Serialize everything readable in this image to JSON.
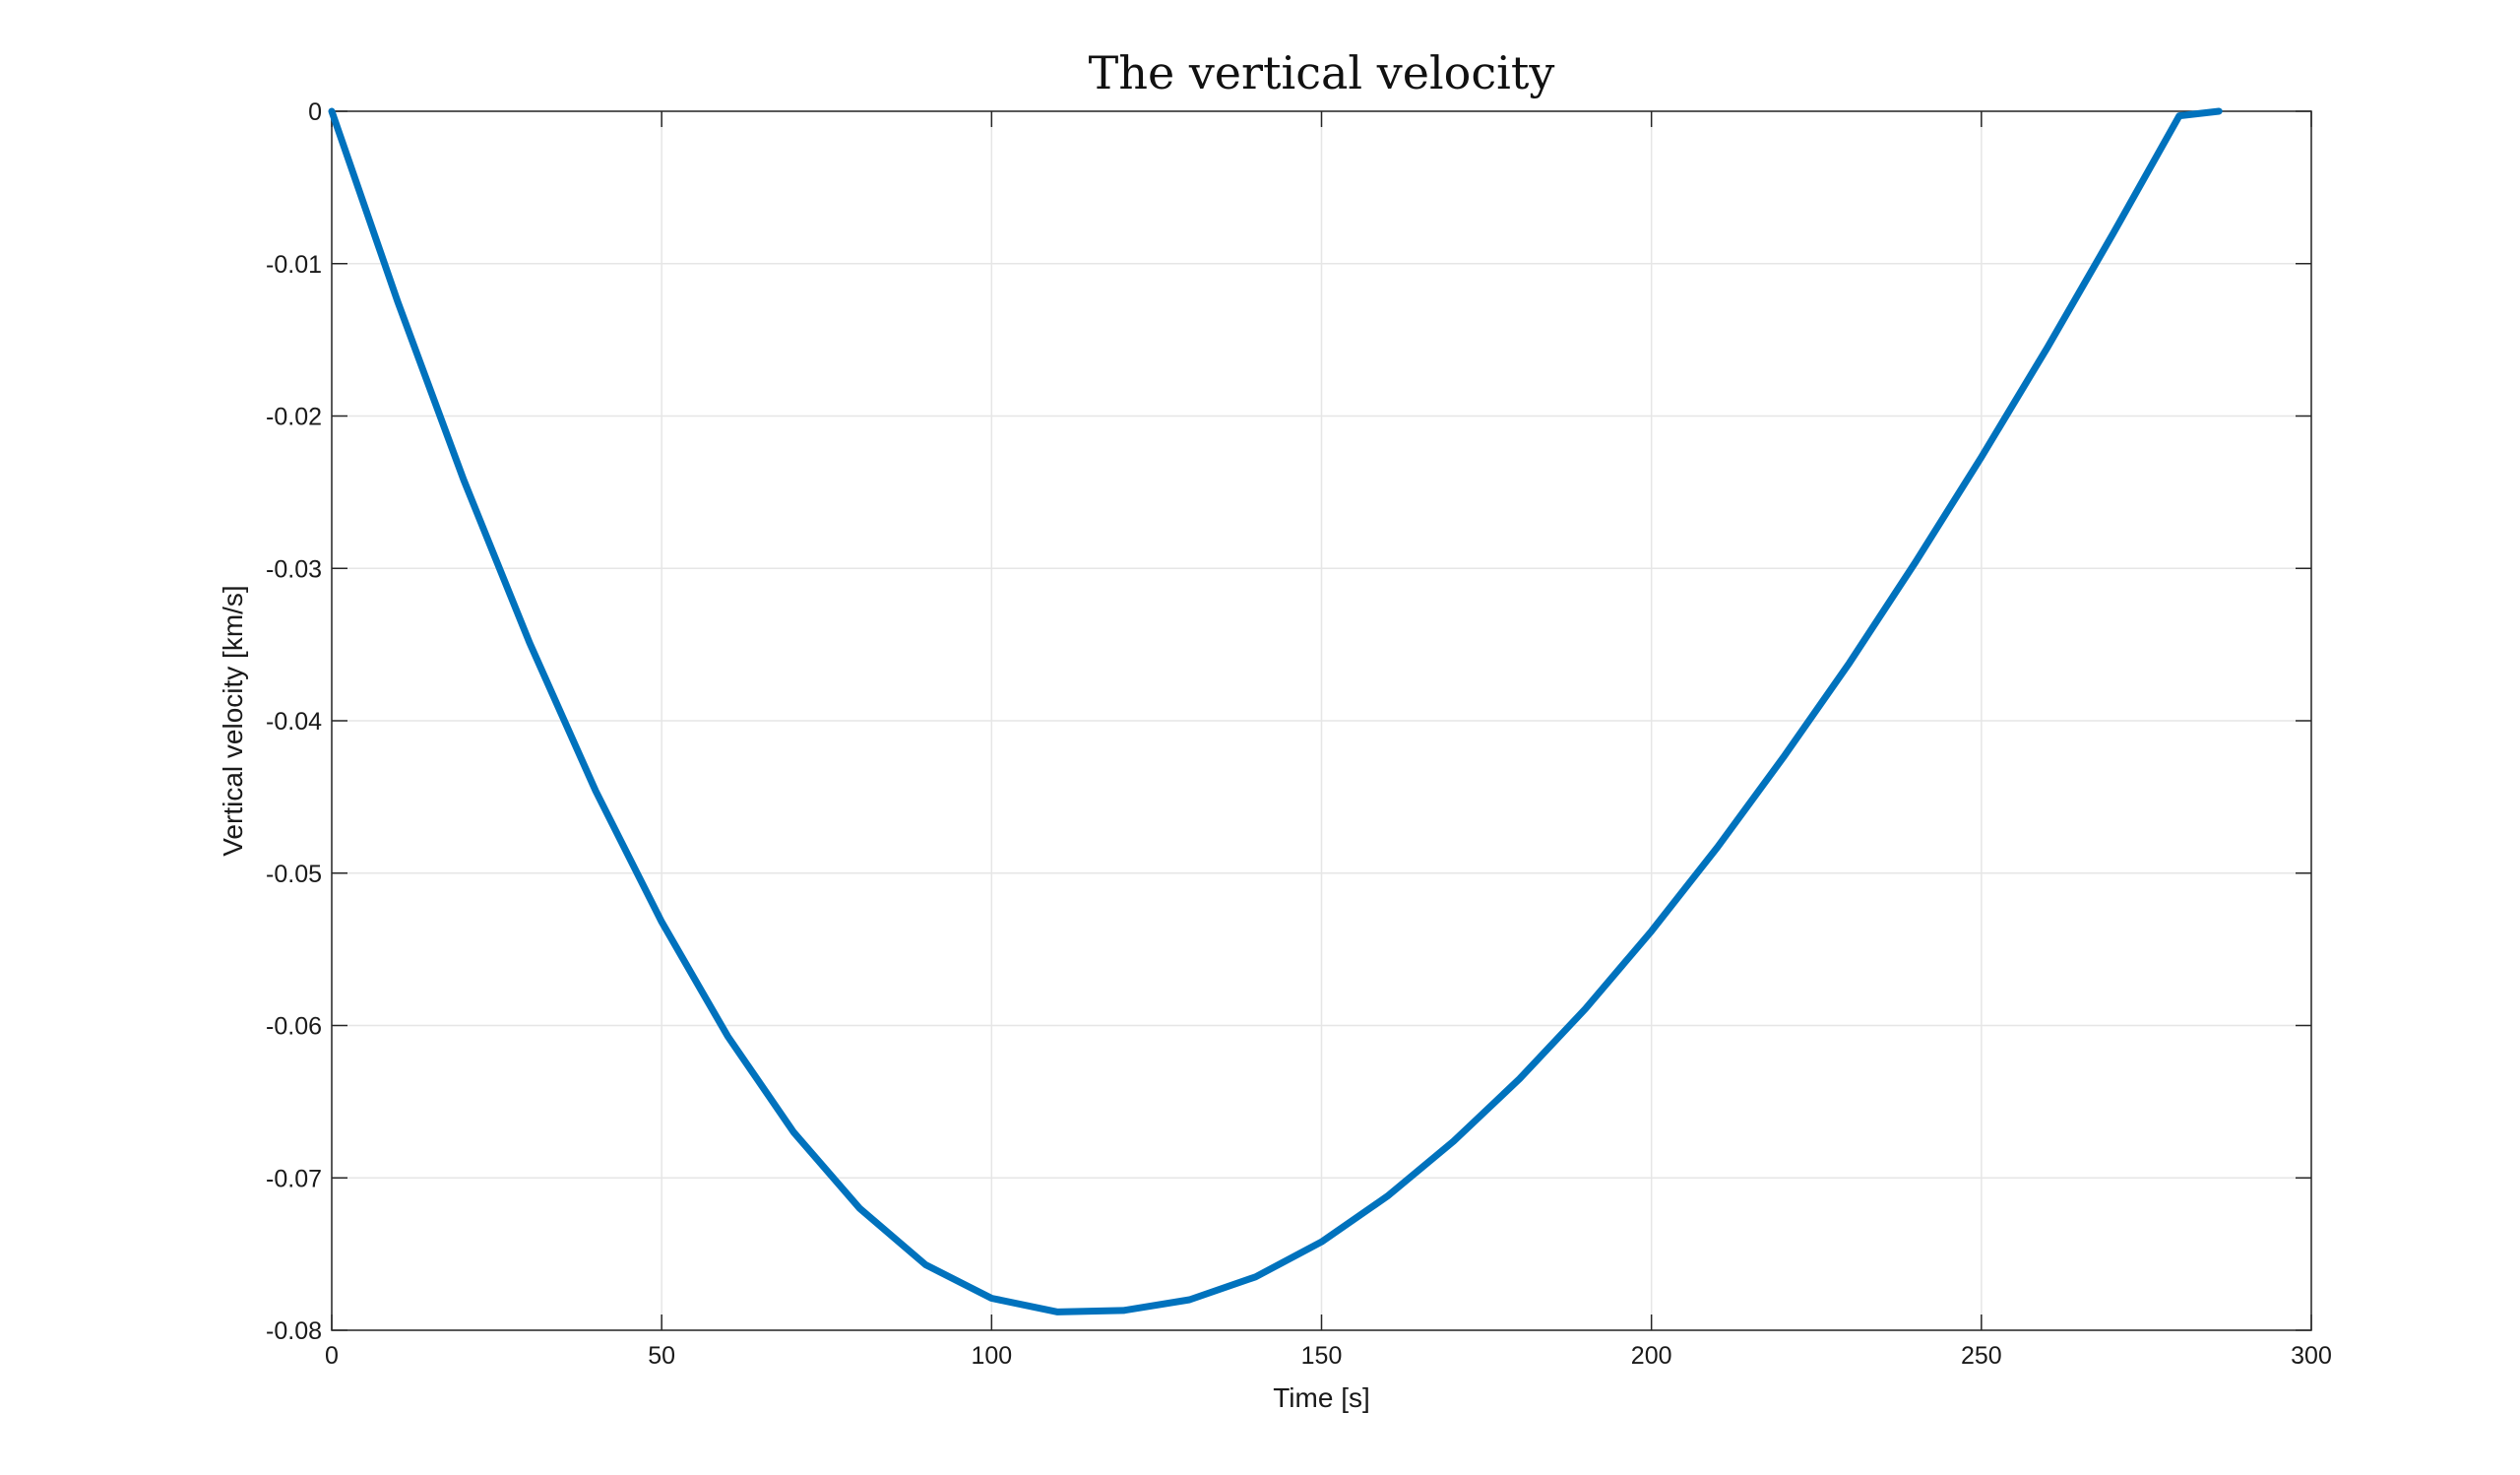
{
  "chart_data": {
    "type": "line",
    "title": "The vertical velocity",
    "xlabel": "Time [s]",
    "ylabel": "Vertical velocity [km/s]",
    "xlim": [
      0,
      300
    ],
    "ylim": [
      -0.08,
      0
    ],
    "xticks": [
      0,
      50,
      100,
      150,
      200,
      250,
      300
    ],
    "yticks": [
      0,
      -0.01,
      -0.02,
      -0.03,
      -0.04,
      -0.05,
      -0.06,
      -0.07,
      -0.08
    ],
    "xtick_labels": [
      "0",
      "50",
      "100",
      "150",
      "200",
      "250",
      "300"
    ],
    "ytick_labels": [
      "0",
      "-0.01",
      "-0.02",
      "-0.03",
      "-0.04",
      "-0.05",
      "-0.06",
      "-0.07",
      "-0.08"
    ],
    "grid": true,
    "series": [
      {
        "color": "#0072BD",
        "x": [
          0,
          10,
          20,
          30,
          40,
          50,
          60,
          70,
          80,
          90,
          100,
          110,
          120,
          130,
          140,
          150,
          160,
          170,
          180,
          190,
          200,
          210,
          220,
          230,
          240,
          250,
          260,
          270,
          280,
          286
        ],
        "y": [
          0,
          -0.0125,
          -0.0242,
          -0.0349,
          -0.0446,
          -0.0532,
          -0.0607,
          -0.067,
          -0.072,
          -0.0757,
          -0.0779,
          -0.0788,
          -0.0787,
          -0.078,
          -0.0765,
          -0.0742,
          -0.0712,
          -0.0676,
          -0.0635,
          -0.0589,
          -0.0538,
          -0.0483,
          -0.0424,
          -0.0362,
          -0.0296,
          -0.0227,
          -0.0155,
          -0.008,
          -0.0003,
          0
        ]
      }
    ]
  }
}
